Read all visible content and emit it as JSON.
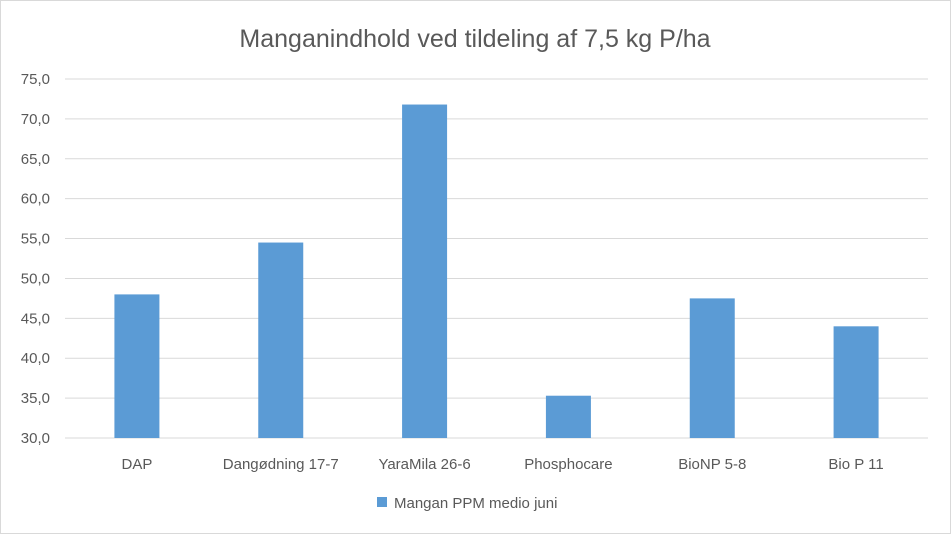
{
  "chart_data": {
    "type": "bar",
    "title": "Manganindhold ved tildeling af 7,5 kg P/ha",
    "categories": [
      "DAP",
      "Dangødning 17-7",
      "YaraMila 26-6",
      "Phosphocare",
      "BioNP 5-8",
      "Bio P 11"
    ],
    "series": [
      {
        "name": "Mangan PPM medio juni",
        "values": [
          48.0,
          54.5,
          71.8,
          35.3,
          47.5,
          44.0
        ],
        "color": "#5b9bd5"
      }
    ],
    "ylim": [
      30,
      75
    ],
    "yticks": [
      "30,0",
      "35,0",
      "40,0",
      "45,0",
      "50,0",
      "55,0",
      "60,0",
      "65,0",
      "70,0",
      "75,0"
    ],
    "grid": true,
    "legend_position": "bottom"
  }
}
